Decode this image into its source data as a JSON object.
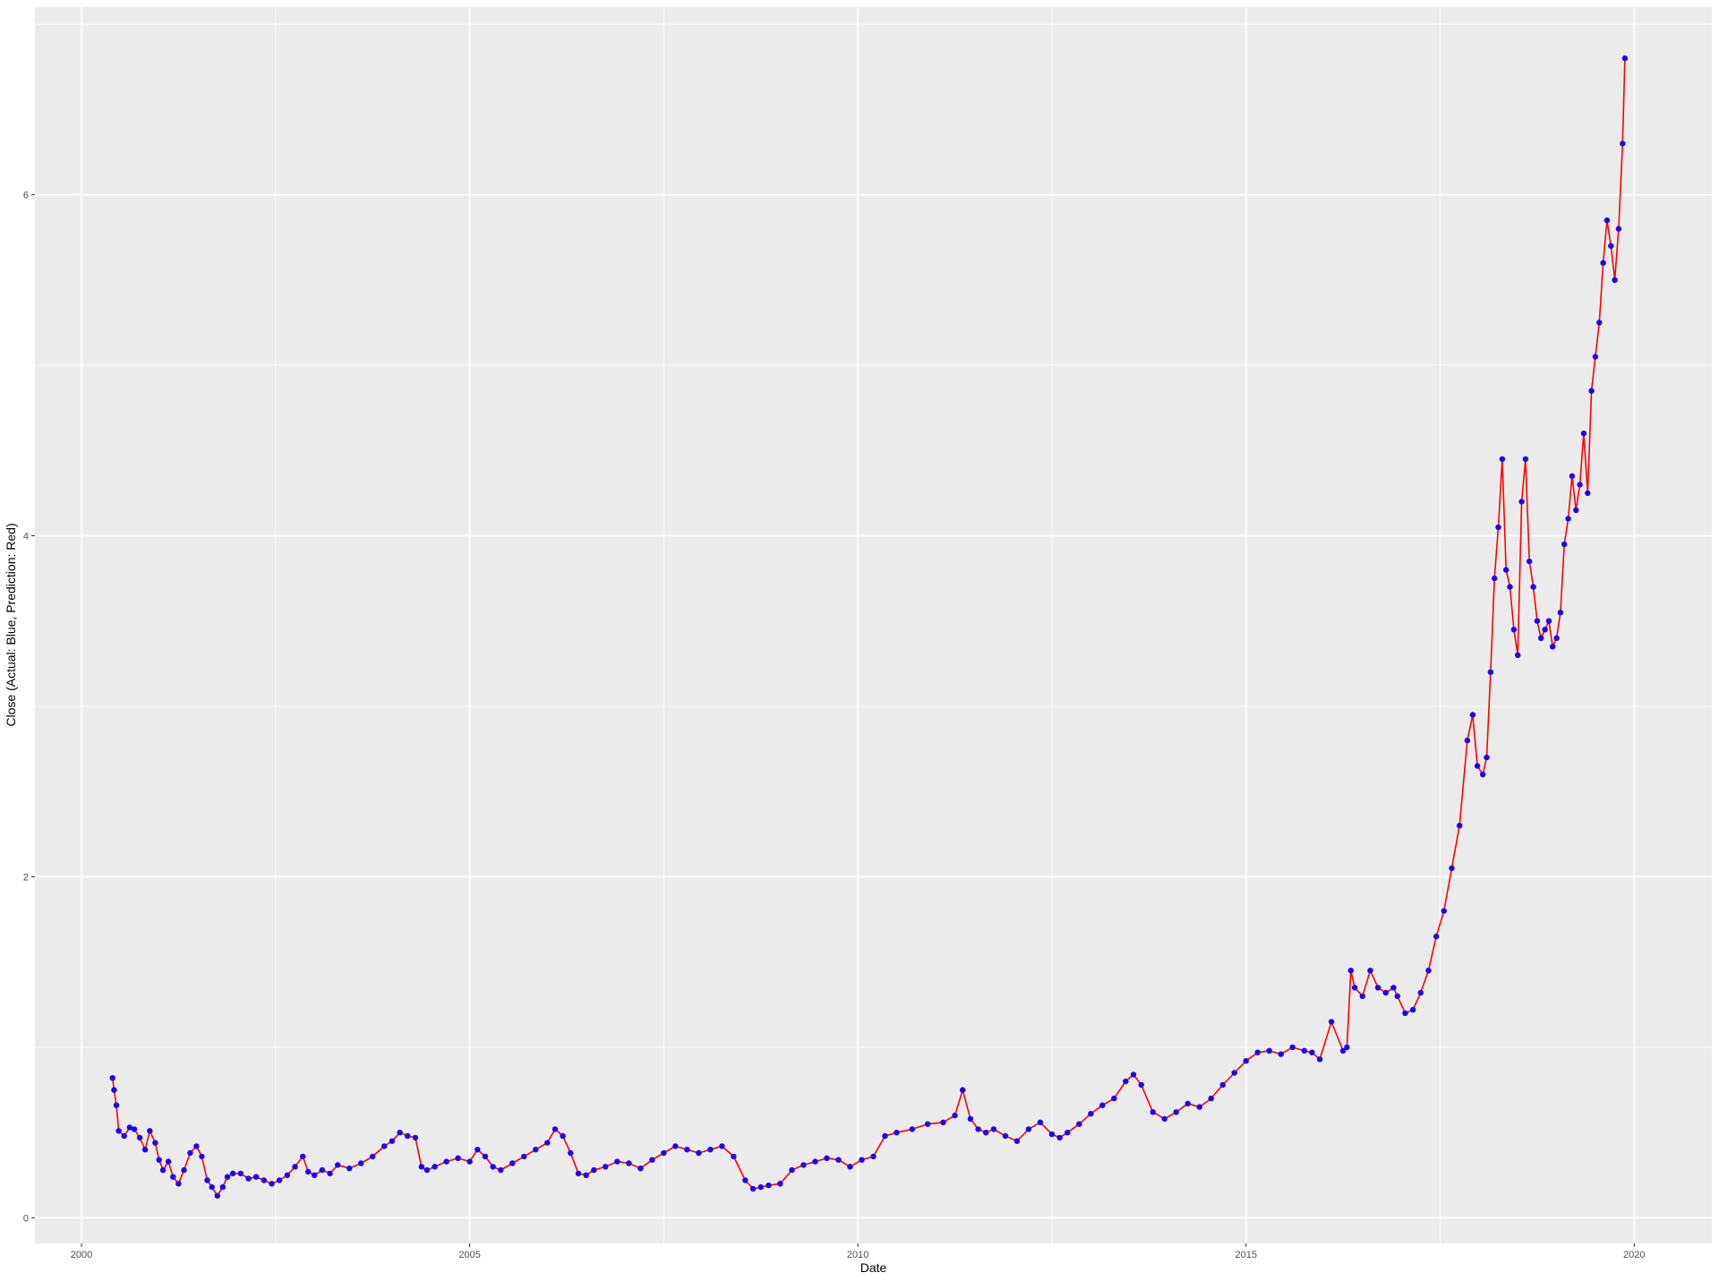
{
  "chart_data": {
    "type": "line",
    "title": "",
    "xlabel": "Date",
    "ylabel": "Close (Actual: Blue, Prediction: Red)",
    "xlim": [
      1999.4,
      2021.0
    ],
    "ylim": [
      -0.15,
      7.1
    ],
    "x_ticks": [
      2000,
      2005,
      2010,
      2015,
      2020
    ],
    "x_tick_labels": [
      "2000",
      "2005",
      "2010",
      "2015",
      "2020"
    ],
    "y_ticks": [
      0,
      2,
      4,
      6
    ],
    "y_tick_labels": [
      "0",
      "2",
      "4",
      "6"
    ],
    "grid": true,
    "legend": "none",
    "colors": {
      "actual": "#1a00ff",
      "prediction": "#ff0000",
      "panel": "#ebebeb",
      "grid": "#ffffff"
    },
    "series": [
      {
        "role": "actual",
        "marker": "point",
        "x": [
          2000.4,
          2000.42,
          2000.45,
          2000.48,
          2000.55,
          2000.62,
          2000.68,
          2000.75,
          2000.82,
          2000.88,
          2000.95,
          2001.0,
          2001.05,
          2001.12,
          2001.18,
          2001.25,
          2001.32,
          2001.4,
          2001.48,
          2001.55,
          2001.62,
          2001.68,
          2001.75,
          2001.82,
          2001.88,
          2001.95,
          2002.05,
          2002.15,
          2002.25,
          2002.35,
          2002.45,
          2002.55,
          2002.65,
          2002.75,
          2002.85,
          2002.92,
          2003.0,
          2003.1,
          2003.2,
          2003.3,
          2003.45,
          2003.6,
          2003.75,
          2003.9,
          2004.0,
          2004.1,
          2004.2,
          2004.3,
          2004.38,
          2004.45,
          2004.55,
          2004.7,
          2004.85,
          2005.0,
          2005.1,
          2005.2,
          2005.3,
          2005.4,
          2005.55,
          2005.7,
          2005.85,
          2006.0,
          2006.1,
          2006.2,
          2006.3,
          2006.4,
          2006.5,
          2006.6,
          2006.75,
          2006.9,
          2007.05,
          2007.2,
          2007.35,
          2007.5,
          2007.65,
          2007.8,
          2007.95,
          2008.1,
          2008.25,
          2008.4,
          2008.55,
          2008.65,
          2008.75,
          2008.85,
          2009.0,
          2009.15,
          2009.3,
          2009.45,
          2009.6,
          2009.75,
          2009.9,
          2010.05,
          2010.2,
          2010.35,
          2010.5,
          2010.7,
          2010.9,
          2011.1,
          2011.25,
          2011.35,
          2011.45,
          2011.55,
          2011.65,
          2011.75,
          2011.9,
          2012.05,
          2012.2,
          2012.35,
          2012.5,
          2012.6,
          2012.7,
          2012.85,
          2013.0,
          2013.15,
          2013.3,
          2013.45,
          2013.55,
          2013.65,
          2013.8,
          2013.95,
          2014.1,
          2014.25,
          2014.4,
          2014.55,
          2014.7,
          2014.85,
          2015.0,
          2015.15,
          2015.3,
          2015.45,
          2015.6,
          2015.75,
          2015.85,
          2015.95,
          2016.1,
          2016.25,
          2016.3,
          2016.35,
          2016.4,
          2016.5,
          2016.6,
          2016.7,
          2016.8,
          2016.9,
          2016.95,
          2017.05,
          2017.15,
          2017.25,
          2017.35,
          2017.45,
          2017.55,
          2017.65,
          2017.75,
          2017.85,
          2017.92,
          2017.98,
          2018.05,
          2018.1,
          2018.15,
          2018.2,
          2018.25,
          2018.3,
          2018.35,
          2018.4,
          2018.45,
          2018.5,
          2018.55,
          2018.6,
          2018.65,
          2018.7,
          2018.75,
          2018.8,
          2018.85,
          2018.9,
          2018.95,
          2019.0,
          2019.05,
          2019.1,
          2019.15,
          2019.2,
          2019.25,
          2019.3,
          2019.35,
          2019.4,
          2019.45,
          2019.5,
          2019.55,
          2019.6,
          2019.65,
          2019.7,
          2019.75,
          2019.8,
          2019.85,
          2019.88
        ],
        "y": [
          0.82,
          0.75,
          0.66,
          0.51,
          0.48,
          0.53,
          0.52,
          0.47,
          0.4,
          0.51,
          0.44,
          0.34,
          0.28,
          0.33,
          0.24,
          0.2,
          0.28,
          0.38,
          0.42,
          0.36,
          0.22,
          0.18,
          0.13,
          0.18,
          0.24,
          0.26,
          0.26,
          0.23,
          0.24,
          0.22,
          0.2,
          0.22,
          0.25,
          0.3,
          0.36,
          0.27,
          0.25,
          0.28,
          0.26,
          0.31,
          0.29,
          0.32,
          0.36,
          0.42,
          0.45,
          0.5,
          0.48,
          0.47,
          0.3,
          0.28,
          0.3,
          0.33,
          0.35,
          0.33,
          0.4,
          0.36,
          0.3,
          0.28,
          0.32,
          0.36,
          0.4,
          0.44,
          0.52,
          0.48,
          0.38,
          0.26,
          0.25,
          0.28,
          0.3,
          0.33,
          0.32,
          0.29,
          0.34,
          0.38,
          0.42,
          0.4,
          0.38,
          0.4,
          0.42,
          0.36,
          0.22,
          0.17,
          0.18,
          0.19,
          0.2,
          0.28,
          0.31,
          0.33,
          0.35,
          0.34,
          0.3,
          0.34,
          0.36,
          0.48,
          0.5,
          0.52,
          0.55,
          0.56,
          0.6,
          0.75,
          0.58,
          0.52,
          0.5,
          0.52,
          0.48,
          0.45,
          0.52,
          0.56,
          0.49,
          0.47,
          0.5,
          0.55,
          0.61,
          0.66,
          0.7,
          0.8,
          0.84,
          0.78,
          0.62,
          0.58,
          0.62,
          0.67,
          0.65,
          0.7,
          0.78,
          0.85,
          0.92,
          0.97,
          0.98,
          0.96,
          1.0,
          0.98,
          0.97,
          0.93,
          1.15,
          0.98,
          1.0,
          1.45,
          1.35,
          1.3,
          1.45,
          1.35,
          1.32,
          1.35,
          1.3,
          1.2,
          1.22,
          1.32,
          1.45,
          1.65,
          1.8,
          2.05,
          2.3,
          2.8,
          2.95,
          2.65,
          2.6,
          2.7,
          3.2,
          3.75,
          4.05,
          4.45,
          3.8,
          3.7,
          3.45,
          3.3,
          4.2,
          4.45,
          3.85,
          3.7,
          3.5,
          3.4,
          3.45,
          3.5,
          3.35,
          3.4,
          3.55,
          3.95,
          4.1,
          4.35,
          4.15,
          4.3,
          4.6,
          4.25,
          4.85,
          5.05,
          5.25,
          5.6,
          5.85,
          5.7,
          5.5,
          5.8,
          6.3,
          6.8
        ]
      },
      {
        "role": "prediction",
        "marker": "line",
        "x": [
          2000.4,
          2000.42,
          2000.45,
          2000.48,
          2000.55,
          2000.62,
          2000.68,
          2000.75,
          2000.82,
          2000.88,
          2000.95,
          2001.0,
          2001.05,
          2001.12,
          2001.18,
          2001.25,
          2001.32,
          2001.4,
          2001.48,
          2001.55,
          2001.62,
          2001.68,
          2001.75,
          2001.82,
          2001.88,
          2001.95,
          2002.05,
          2002.15,
          2002.25,
          2002.35,
          2002.45,
          2002.55,
          2002.65,
          2002.75,
          2002.85,
          2002.92,
          2003.0,
          2003.1,
          2003.2,
          2003.3,
          2003.45,
          2003.6,
          2003.75,
          2003.9,
          2004.0,
          2004.1,
          2004.2,
          2004.3,
          2004.38,
          2004.45,
          2004.55,
          2004.7,
          2004.85,
          2005.0,
          2005.1,
          2005.2,
          2005.3,
          2005.4,
          2005.55,
          2005.7,
          2005.85,
          2006.0,
          2006.1,
          2006.2,
          2006.3,
          2006.4,
          2006.5,
          2006.6,
          2006.75,
          2006.9,
          2007.05,
          2007.2,
          2007.35,
          2007.5,
          2007.65,
          2007.8,
          2007.95,
          2008.1,
          2008.25,
          2008.4,
          2008.55,
          2008.65,
          2008.75,
          2008.85,
          2009.0,
          2009.15,
          2009.3,
          2009.45,
          2009.6,
          2009.75,
          2009.9,
          2010.05,
          2010.2,
          2010.35,
          2010.5,
          2010.7,
          2010.9,
          2011.1,
          2011.25,
          2011.35,
          2011.45,
          2011.55,
          2011.65,
          2011.75,
          2011.9,
          2012.05,
          2012.2,
          2012.35,
          2012.5,
          2012.6,
          2012.7,
          2012.85,
          2013.0,
          2013.15,
          2013.3,
          2013.45,
          2013.55,
          2013.65,
          2013.8,
          2013.95,
          2014.1,
          2014.25,
          2014.4,
          2014.55,
          2014.7,
          2014.85,
          2015.0,
          2015.15,
          2015.3,
          2015.45,
          2015.6,
          2015.75,
          2015.85,
          2015.95,
          2016.1,
          2016.25,
          2016.3,
          2016.35,
          2016.4,
          2016.5,
          2016.6,
          2016.7,
          2016.8,
          2016.9,
          2016.95,
          2017.05,
          2017.15,
          2017.25,
          2017.35,
          2017.45,
          2017.55,
          2017.65,
          2017.75,
          2017.85,
          2017.92,
          2017.98,
          2018.05,
          2018.1,
          2018.15,
          2018.2,
          2018.25,
          2018.3,
          2018.35,
          2018.4,
          2018.45,
          2018.5,
          2018.55,
          2018.6,
          2018.65,
          2018.7,
          2018.75,
          2018.8,
          2018.85,
          2018.9,
          2018.95,
          2019.0,
          2019.05,
          2019.1,
          2019.15,
          2019.2,
          2019.25,
          2019.3,
          2019.35,
          2019.4,
          2019.45,
          2019.5,
          2019.55,
          2019.6,
          2019.65,
          2019.7,
          2019.75,
          2019.8,
          2019.85,
          2019.88
        ],
        "y": [
          0.82,
          0.75,
          0.66,
          0.51,
          0.48,
          0.53,
          0.52,
          0.47,
          0.4,
          0.51,
          0.44,
          0.34,
          0.28,
          0.33,
          0.24,
          0.2,
          0.28,
          0.38,
          0.42,
          0.36,
          0.22,
          0.18,
          0.13,
          0.18,
          0.24,
          0.26,
          0.26,
          0.23,
          0.24,
          0.22,
          0.2,
          0.22,
          0.25,
          0.3,
          0.36,
          0.27,
          0.25,
          0.28,
          0.26,
          0.31,
          0.29,
          0.32,
          0.36,
          0.42,
          0.45,
          0.5,
          0.48,
          0.47,
          0.3,
          0.28,
          0.3,
          0.33,
          0.35,
          0.33,
          0.4,
          0.36,
          0.3,
          0.28,
          0.32,
          0.36,
          0.4,
          0.44,
          0.52,
          0.48,
          0.38,
          0.26,
          0.25,
          0.28,
          0.3,
          0.33,
          0.32,
          0.29,
          0.34,
          0.38,
          0.42,
          0.4,
          0.38,
          0.4,
          0.42,
          0.36,
          0.22,
          0.17,
          0.18,
          0.19,
          0.2,
          0.28,
          0.31,
          0.33,
          0.35,
          0.34,
          0.3,
          0.34,
          0.36,
          0.48,
          0.5,
          0.52,
          0.55,
          0.56,
          0.6,
          0.75,
          0.58,
          0.52,
          0.5,
          0.52,
          0.48,
          0.45,
          0.52,
          0.56,
          0.49,
          0.47,
          0.5,
          0.55,
          0.61,
          0.66,
          0.7,
          0.8,
          0.84,
          0.78,
          0.62,
          0.58,
          0.62,
          0.67,
          0.65,
          0.7,
          0.78,
          0.85,
          0.92,
          0.97,
          0.98,
          0.96,
          1.0,
          0.98,
          0.97,
          0.93,
          1.15,
          0.98,
          1.0,
          1.45,
          1.35,
          1.3,
          1.45,
          1.35,
          1.32,
          1.35,
          1.3,
          1.2,
          1.22,
          1.32,
          1.45,
          1.65,
          1.8,
          2.05,
          2.3,
          2.8,
          2.95,
          2.65,
          2.6,
          2.7,
          3.2,
          3.75,
          4.05,
          4.45,
          3.8,
          3.7,
          3.45,
          3.3,
          4.2,
          4.45,
          3.85,
          3.7,
          3.5,
          3.4,
          3.45,
          3.5,
          3.35,
          3.4,
          3.55,
          3.95,
          4.1,
          4.35,
          4.15,
          4.3,
          4.6,
          4.25,
          4.85,
          5.05,
          5.25,
          5.6,
          5.85,
          5.7,
          5.5,
          5.8,
          6.3,
          6.8
        ]
      }
    ]
  }
}
